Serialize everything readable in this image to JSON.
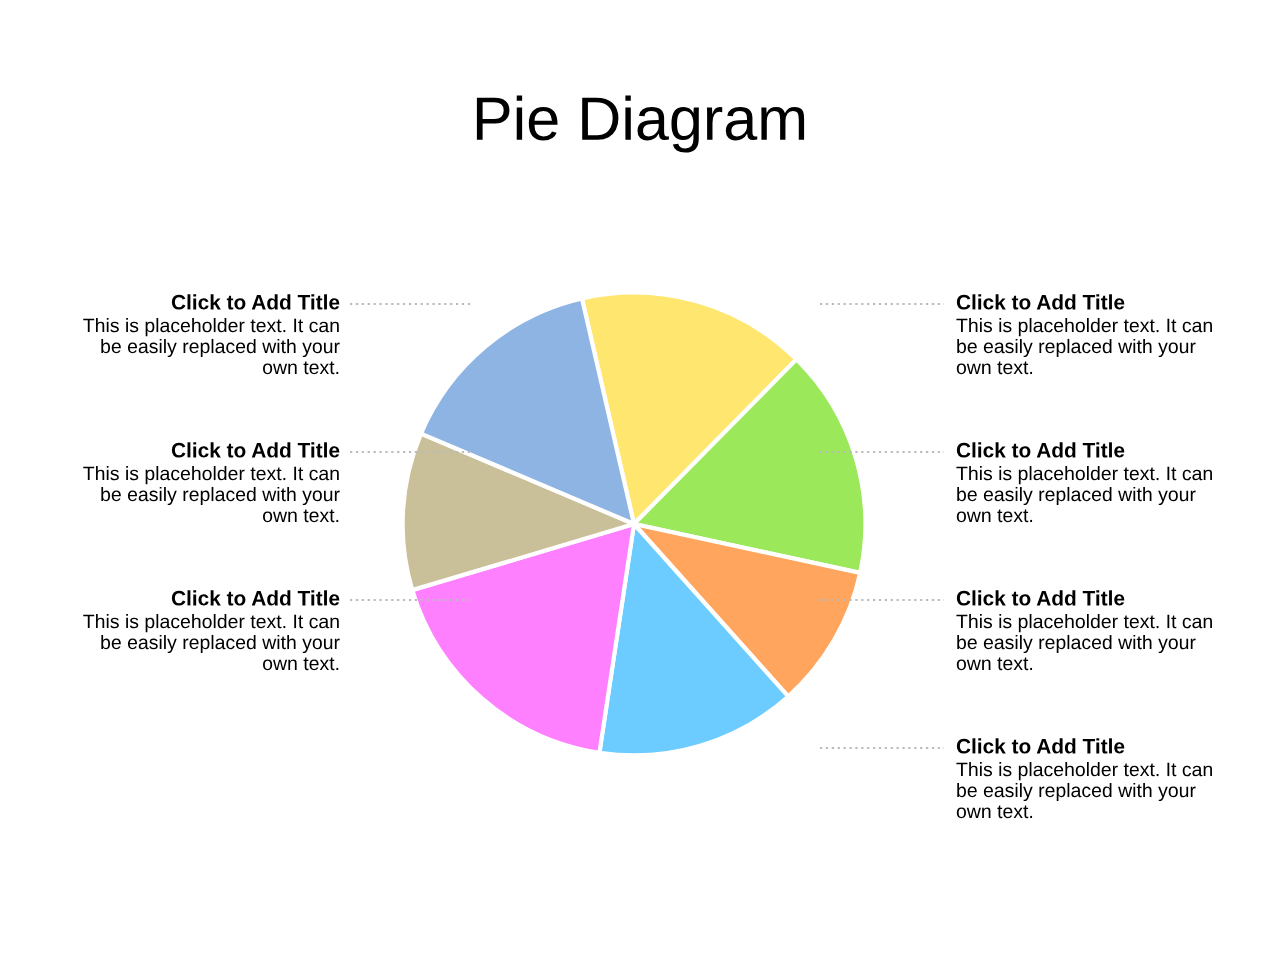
{
  "chart_data": {
    "type": "pie",
    "title": "Pie Diagram",
    "categories": [
      null,
      null,
      null,
      null,
      null,
      null,
      null
    ],
    "values": [
      16,
      16,
      10,
      14,
      18,
      11,
      15
    ],
    "colors": [
      "#ffe66e",
      "#9be85a",
      "#ffa55e",
      "#6ccbff",
      "#ff80ff",
      "#c9bf98",
      "#8eb4e3"
    ],
    "annotations": [
      "Click to Add Title",
      "This is placeholder text. It can\nbe easily replaced with your\nown text.",
      "Click to Add Title",
      "This is placeholder text. It can\nbe easily replaced with your\nown text.",
      "Click to Add Title",
      "This is placeholder text. It can\nbe easily replaced with your\nown text.",
      "Click to Add Title",
      "This is placeholder text. It can\nbe easily replaced with your\nown text.",
      "Click to Add Title",
      "This is placeholder text. It can\nbe easily replaced with your\nown text.",
      "Click to Add Title",
      "This is placeholder text. It can\nbe easily replaced with your\nown text.",
      "Click to Add Title",
      "This is placeholder text. It can\nbe easily replaced with your\nown text."
    ]
  }
}
